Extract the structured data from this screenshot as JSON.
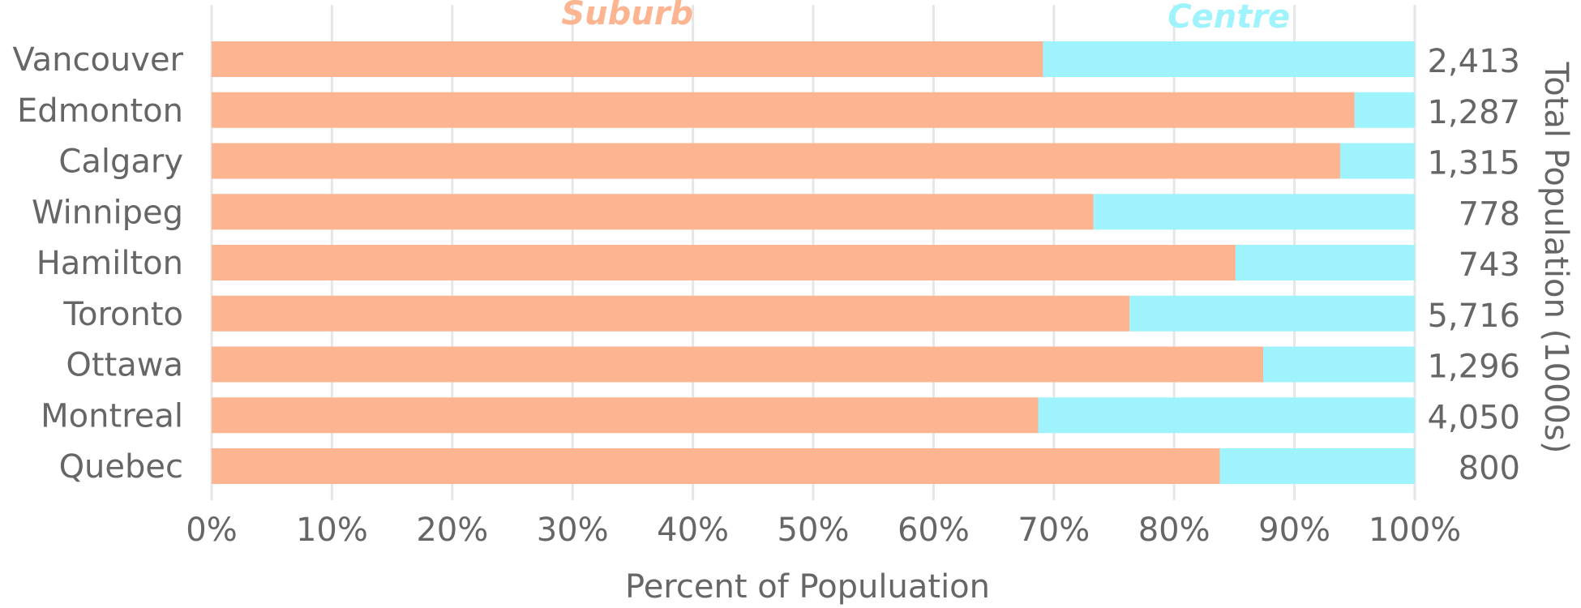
{
  "chart_data": {
    "type": "bar",
    "orientation": "horizontal",
    "stacked": "percent",
    "categories": [
      "Vancouver",
      "Edmonton",
      "Calgary",
      "Winnipeg",
      "Hamilton",
      "Toronto",
      "Ottawa",
      "Montreal",
      "Quebec"
    ],
    "series": [
      {
        "name": "Suburb",
        "color": "#fcb590",
        "values": [
          69.1,
          95.0,
          93.8,
          73.3,
          85.1,
          76.3,
          87.4,
          68.7,
          83.8
        ]
      },
      {
        "name": "Centre",
        "color": "#9ff3fc",
        "values": [
          30.9,
          5.0,
          6.2,
          26.7,
          14.9,
          23.7,
          12.6,
          31.3,
          16.2
        ]
      }
    ],
    "totals": [
      "2,413",
      "1,287",
      "1,315",
      "778",
      "743",
      "5,716",
      "1,296",
      "4,050",
      "800"
    ],
    "x_ticks": [
      "0%",
      "10%",
      "20%",
      "30%",
      "40%",
      "50%",
      "60%",
      "70%",
      "80%",
      "90%",
      "100%"
    ],
    "xlim": [
      0,
      100
    ],
    "xlabel": "Percent of Populuation",
    "y2label": "Total Population (1000s)",
    "grid": true,
    "legend": "top",
    "text_color": "#666666",
    "grid_color": "#e6e6e6"
  }
}
